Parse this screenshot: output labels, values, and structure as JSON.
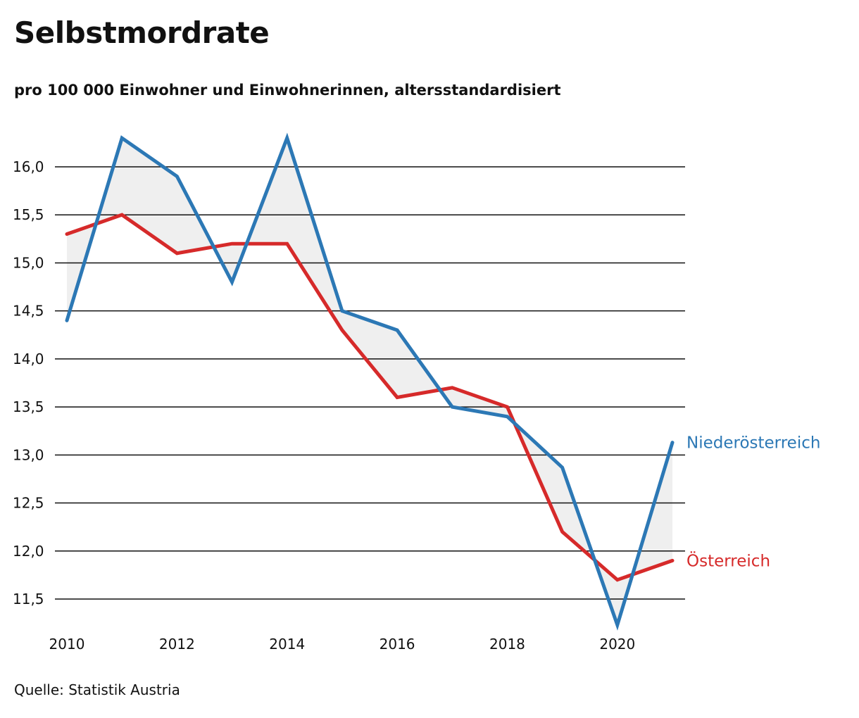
{
  "title": "Selbstmordrate",
  "subtitle": "pro 100 000 Einwohner und Einwohnerinnen, altersstandardisiert",
  "source": "Quelle: Statistik Austria",
  "chart_data": {
    "type": "line",
    "title": "Selbstmordrate",
    "subtitle": "pro 100 000 Einwohner und Einwohnerinnen, altersstandardisiert",
    "x": [
      2010,
      2011,
      2012,
      2013,
      2014,
      2015,
      2016,
      2017,
      2018,
      2019,
      2020,
      2021
    ],
    "xticks": [
      2010,
      2012,
      2014,
      2016,
      2018,
      2020
    ],
    "xtick_labels": [
      "2010",
      "2012",
      "2014",
      "2016",
      "2018",
      "2020"
    ],
    "yticks": [
      11.5,
      12.0,
      12.5,
      13.0,
      13.5,
      14.0,
      14.5,
      15.0,
      15.5,
      16.0
    ],
    "ytick_labels": [
      "11,5",
      "12,0",
      "12,5",
      "13,0",
      "13,5",
      "14,0",
      "14,5",
      "15,0",
      "15,5",
      "16,0"
    ],
    "xlim": [
      2010,
      2021
    ],
    "ylim": [
      11.2,
      16.4
    ],
    "grid": "horizontal",
    "fill_between_series": true,
    "fill_color": "#efefef",
    "series": [
      {
        "name": "Niederösterreich",
        "color": "#2c78b5",
        "values": [
          14.4,
          16.3,
          15.9,
          14.8,
          16.3,
          14.5,
          14.3,
          13.5,
          13.4,
          12.87,
          11.23,
          13.13
        ]
      },
      {
        "name": "Österreich",
        "color": "#d62a2a",
        "values": [
          15.3,
          15.5,
          15.1,
          15.2,
          15.2,
          14.3,
          13.6,
          13.7,
          13.5,
          12.2,
          11.7,
          11.9
        ]
      }
    ]
  }
}
